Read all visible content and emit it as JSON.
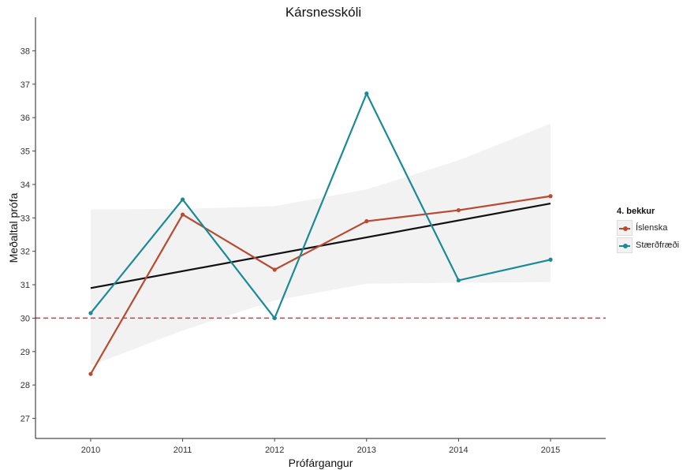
{
  "chart_data": {
    "type": "line",
    "title": "Kársnesskóli",
    "xlabel": "Prófárgangur",
    "ylabel": "Meðaltal prófa",
    "categories": [
      "2010",
      "2011",
      "2012",
      "2013",
      "2014",
      "2015"
    ],
    "x": [
      2010,
      2011,
      2012,
      2013,
      2014,
      2015
    ],
    "xlim": [
      2009.4,
      2015.6
    ],
    "ylim": [
      26.4,
      39.0
    ],
    "yticks": [
      27,
      28,
      29,
      30,
      31,
      32,
      33,
      34,
      35,
      36,
      37,
      38
    ],
    "series": [
      {
        "name": "Íslenska",
        "color": "#b94a32",
        "values": [
          28.33,
          33.1,
          31.45,
          32.9,
          33.23,
          33.65
        ]
      },
      {
        "name": "Stærðfræði",
        "color": "#1a8a96",
        "values": [
          30.15,
          33.55,
          30.0,
          36.72,
          31.13,
          31.75
        ]
      }
    ],
    "trend": {
      "color": "#111111",
      "values": [
        30.9,
        33.43
      ]
    },
    "confidence_band": {
      "color": "#f2f2f2",
      "upper": [
        33.25,
        33.27,
        33.35,
        33.85,
        34.72,
        35.82
      ],
      "lower": [
        28.58,
        29.63,
        30.53,
        31.03,
        31.06,
        31.08
      ]
    },
    "reference_line": {
      "value": 30,
      "color": "#d23c3c",
      "style": "dashed"
    },
    "legend": {
      "title": "4. bekkur",
      "position": "right"
    },
    "grid": false
  }
}
